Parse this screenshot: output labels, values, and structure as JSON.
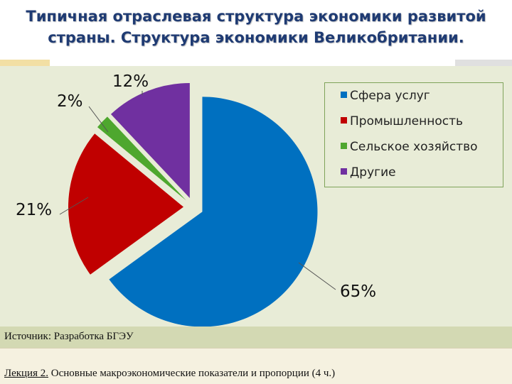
{
  "title": "Типичная отраслевая структура экономики развитой страны. Структура экономики Великобритании.",
  "source": "Источник: Разработка БГЭУ",
  "footer": {
    "lecture": "Лекция 2.",
    "topic": " Основные макроэкономические показатели и пропорции  (4 ч.)"
  },
  "chart_data": {
    "type": "pie",
    "title": "",
    "slices": [
      {
        "label": "Сфера услуг",
        "value": 65,
        "display": "65%",
        "color": "#0070c0"
      },
      {
        "label": "Промышленность",
        "value": 21,
        "display": "21%",
        "color": "#c00000"
      },
      {
        "label": "Сельское хозяйство",
        "value": 2,
        "display": "2%",
        "color": "#4ea72e"
      },
      {
        "label": "Другие",
        "value": 12,
        "display": "12%",
        "color": "#7030a0"
      }
    ],
    "legend_position": "top-right"
  }
}
